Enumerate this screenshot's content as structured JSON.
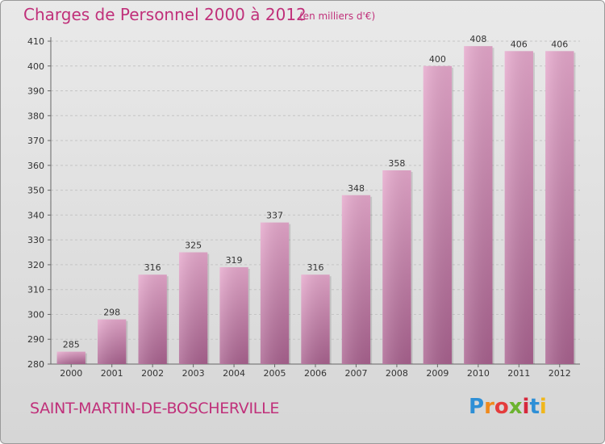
{
  "chart_data": {
    "type": "bar",
    "title": "Charges de Personnel 2000 à 2012",
    "subtitle": "(en milliers d'€)",
    "categories": [
      "2000",
      "2001",
      "2002",
      "2003",
      "2004",
      "2005",
      "2006",
      "2007",
      "2008",
      "2009",
      "2010",
      "2011",
      "2012"
    ],
    "values": [
      285,
      298,
      316,
      325,
      319,
      337,
      316,
      348,
      358,
      400,
      408,
      406,
      406
    ],
    "ylim": [
      280,
      410
    ],
    "yticks": [
      280,
      290,
      300,
      310,
      320,
      330,
      340,
      350,
      360,
      370,
      380,
      390,
      400,
      410
    ],
    "grid": true,
    "bar_color_top": "#e6a8cc",
    "bar_color_bottom": "#a9628f"
  },
  "footer": {
    "commune": "SAINT-MARTIN-DE-BOSCHERVILLE",
    "brand": "Proxiti"
  }
}
